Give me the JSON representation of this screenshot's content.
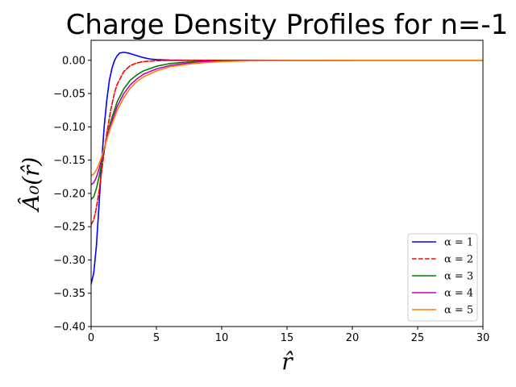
{
  "chart_data": {
    "type": "line",
    "title": "Charge Density Profiles for n=-1",
    "xlabel": "r̂",
    "ylabel": "Â₀(r̂)",
    "xlim": [
      0,
      30
    ],
    "ylim": [
      -0.4,
      0.03
    ],
    "xticks": [
      0,
      5,
      10,
      15,
      20,
      25,
      30
    ],
    "xtick_labels": [
      "0",
      "5",
      "10",
      "15",
      "20",
      "25",
      "30"
    ],
    "yticks": [
      0.0,
      -0.05,
      -0.1,
      -0.15,
      -0.2,
      -0.25,
      -0.3,
      -0.35,
      -0.4
    ],
    "ytick_labels": [
      "0.00",
      "−0.05",
      "−0.10",
      "−0.15",
      "−0.20",
      "−0.25",
      "−0.30",
      "−0.35",
      "−0.40"
    ],
    "grid": false,
    "legend_position": "bottom-right",
    "series": [
      {
        "name": "α = 1",
        "color": "#0000ff",
        "dash": "solid",
        "x": [
          0,
          0.2,
          0.4,
          0.6,
          0.8,
          1.0,
          1.2,
          1.4,
          1.6,
          1.8,
          2.0,
          2.2,
          2.5,
          2.8,
          3.0,
          3.5,
          4.0,
          4.5,
          5.0,
          6.0,
          7.0,
          8.0,
          10.0,
          12.0,
          15.0,
          20.0
        ],
        "y": [
          -0.336,
          -0.32,
          -0.28,
          -0.22,
          -0.155,
          -0.1,
          -0.06,
          -0.03,
          -0.012,
          0.0,
          0.007,
          0.011,
          0.012,
          0.011,
          0.01,
          0.007,
          0.004,
          0.002,
          0.001,
          0.0003,
          0.0001,
          0.0,
          0.0,
          0.0,
          0.0,
          0.0
        ]
      },
      {
        "name": "α = 2",
        "color": "#ff0000",
        "dash": "dashed",
        "x": [
          0,
          0.2,
          0.4,
          0.6,
          0.8,
          1.0,
          1.2,
          1.5,
          1.8,
          2.0,
          2.5,
          3.0,
          3.5,
          4.0,
          4.5,
          5.0,
          6.0,
          7.0,
          8.0,
          10.0,
          12.0,
          15.0,
          20.0
        ],
        "y": [
          -0.247,
          -0.24,
          -0.222,
          -0.198,
          -0.168,
          -0.138,
          -0.11,
          -0.075,
          -0.048,
          -0.036,
          -0.017,
          -0.008,
          -0.004,
          -0.002,
          -0.0012,
          -0.0006,
          -0.0002,
          -0.0001,
          0.0,
          0.0,
          0.0,
          0.0,
          0.0
        ]
      },
      {
        "name": "α = 3",
        "color": "#008000",
        "dash": "solid",
        "x": [
          0,
          0.2,
          0.4,
          0.6,
          0.8,
          1.0,
          1.25,
          1.5,
          2.0,
          2.5,
          3.0,
          3.5,
          4.0,
          5.0,
          6.0,
          7.0,
          8.0,
          10.0,
          12.0,
          15.0,
          20.0,
          30.0
        ],
        "y": [
          -0.209,
          -0.205,
          -0.193,
          -0.176,
          -0.156,
          -0.135,
          -0.112,
          -0.092,
          -0.062,
          -0.043,
          -0.03,
          -0.022,
          -0.016,
          -0.009,
          -0.005,
          -0.003,
          -0.002,
          -0.0008,
          -0.0003,
          -0.0001,
          0.0,
          0.0
        ]
      },
      {
        "name": "α = 4",
        "color": "#bf00bf",
        "dash": "solid",
        "x": [
          0,
          0.2,
          0.4,
          0.6,
          0.8,
          1.0,
          1.25,
          1.5,
          2.0,
          2.5,
          3.0,
          3.5,
          4.0,
          5.0,
          6.0,
          7.0,
          8.0,
          10.0,
          12.0,
          15.0,
          20.0,
          30.0
        ],
        "y": [
          -0.187,
          -0.184,
          -0.176,
          -0.164,
          -0.149,
          -0.133,
          -0.114,
          -0.097,
          -0.069,
          -0.05,
          -0.037,
          -0.028,
          -0.021,
          -0.013,
          -0.008,
          -0.005,
          -0.003,
          -0.0014,
          -0.0006,
          -0.0002,
          0.0,
          0.0
        ]
      },
      {
        "name": "α = 5",
        "color": "#ff7f0e",
        "dash": "solid",
        "x": [
          0,
          0.2,
          0.4,
          0.6,
          0.8,
          1.0,
          1.25,
          1.5,
          2.0,
          2.5,
          3.0,
          3.5,
          4.0,
          5.0,
          6.0,
          7.0,
          8.0,
          10.0,
          12.0,
          15.0,
          20.0,
          30.0
        ],
        "y": [
          -0.173,
          -0.171,
          -0.165,
          -0.156,
          -0.145,
          -0.132,
          -0.116,
          -0.101,
          -0.075,
          -0.056,
          -0.042,
          -0.032,
          -0.025,
          -0.016,
          -0.01,
          -0.007,
          -0.0045,
          -0.002,
          -0.0009,
          -0.0003,
          -0.0001,
          0.0
        ]
      }
    ]
  }
}
